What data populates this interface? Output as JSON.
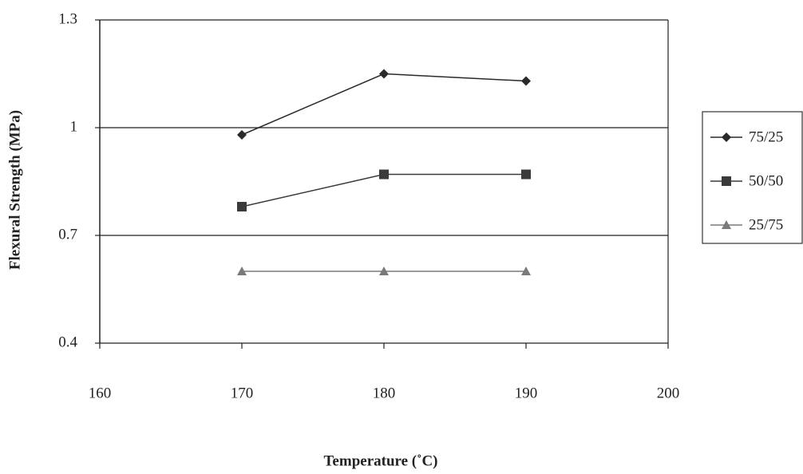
{
  "chart_data": {
    "type": "line",
    "x_label": "Temperature (˚C)",
    "y_label": "Flexural Strength (MPa)",
    "xlim": [
      160,
      200
    ],
    "xticks": [
      160,
      170,
      180,
      190,
      200
    ],
    "ylim": [
      0.4,
      1.3
    ],
    "yticks": [
      0.4,
      0.7,
      1,
      1.3
    ],
    "x": [
      170,
      180,
      190
    ],
    "grid": true,
    "legend": "right",
    "series": [
      {
        "name": "75/25",
        "color": "#2a2a2a",
        "marker": "diamond",
        "values": [
          0.98,
          1.15,
          1.13
        ]
      },
      {
        "name": "50/50",
        "color": "#3a3a3a",
        "marker": "square",
        "values": [
          0.78,
          0.87,
          0.87
        ]
      },
      {
        "name": "25/75",
        "color": "#7a7a7a",
        "marker": "triangle",
        "values": [
          0.6,
          0.6,
          0.6
        ]
      }
    ]
  }
}
